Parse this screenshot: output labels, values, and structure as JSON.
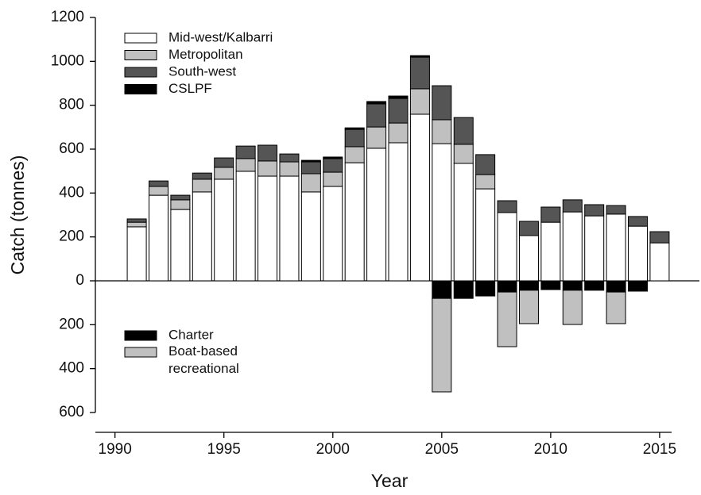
{
  "chart_data": {
    "type": "bar",
    "stacked": true,
    "xlabel": "Year",
    "ylabel": "Catch (tonnes)",
    "x": [
      1991,
      1992,
      1993,
      1994,
      1995,
      1996,
      1997,
      1998,
      1999,
      2000,
      2001,
      2002,
      2003,
      2004,
      2005,
      2006,
      2007,
      2008,
      2009,
      2010,
      2011,
      2012,
      2013,
      2014,
      2015
    ],
    "xlim": [
      1989.1,
      2015.55
    ],
    "xticks": [
      1990,
      1995,
      2000,
      2005,
      2010,
      2015
    ],
    "ylim": [
      -600,
      1200
    ],
    "yticks": [
      {
        "value": -600,
        "label": "600"
      },
      {
        "value": -400,
        "label": "400"
      },
      {
        "value": -200,
        "label": "200"
      },
      0,
      200,
      400,
      600,
      800,
      1000,
      1200
    ],
    "series": [
      {
        "name": "Mid-west/Kalbarri",
        "color": "#ffffff",
        "values": [
          246,
          390,
          325,
          405,
          463,
          499,
          477,
          477,
          405,
          430,
          538,
          604,
          629,
          759,
          625,
          535,
          419,
          311,
          206,
          267,
          314,
          296,
          304,
          249,
          173
        ]
      },
      {
        "name": "Metropolitan",
        "color": "#c0c0c0",
        "values": [
          21,
          40,
          44,
          58,
          54,
          58,
          69,
          65,
          83,
          65,
          73,
          97,
          90,
          116,
          109,
          87,
          65,
          0,
          0,
          0,
          0,
          0,
          0,
          0,
          0
        ]
      },
      {
        "name": "South-west",
        "color": "#555555",
        "values": [
          15,
          25,
          21,
          28,
          43,
          57,
          72,
          36,
          54,
          62,
          79,
          105,
          112,
          144,
          155,
          122,
          91,
          54,
          65,
          69,
          55,
          51,
          39,
          44,
          51
        ]
      },
      {
        "name": "CSLPF",
        "color": "#000000",
        "values": [
          0,
          0,
          0,
          0,
          0,
          0,
          0,
          0,
          7,
          7,
          7,
          11,
          11,
          7,
          0,
          0,
          0,
          0,
          0,
          0,
          0,
          0,
          0,
          0,
          0
        ]
      },
      {
        "name": "Charter",
        "color": "#000000",
        "values": [
          null,
          null,
          null,
          null,
          null,
          null,
          null,
          null,
          null,
          null,
          null,
          null,
          null,
          null,
          -80,
          -80,
          -69,
          -51,
          -43,
          -40,
          -43,
          -43,
          -51,
          -47,
          null
        ]
      },
      {
        "name": "Boat-based recreational",
        "color": "#c0c0c0",
        "values": [
          null,
          null,
          null,
          null,
          null,
          null,
          null,
          null,
          null,
          null,
          null,
          null,
          null,
          null,
          -426,
          null,
          null,
          -249,
          -152,
          null,
          -156,
          null,
          -144,
          null,
          null
        ]
      }
    ]
  }
}
